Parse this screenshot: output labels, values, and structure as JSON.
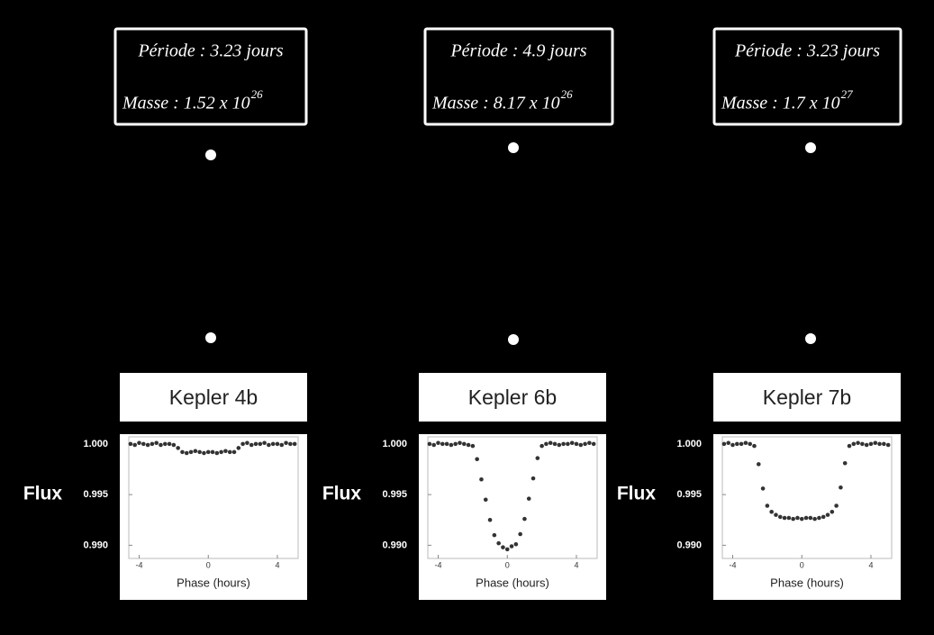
{
  "chart_data": [
    {
      "type": "scatter",
      "title": "Kepler 4b",
      "annotations": {
        "period": "Période : 3.23 jours",
        "mass": "Masse : 1.52 x 10",
        "mass_exponent": "26"
      },
      "x_label": "Phase (hours)",
      "y_label": "Flux",
      "color": "#333333",
      "xlim": [
        -4.6,
        5.2
      ],
      "ylim": [
        0.9887,
        1.0007
      ],
      "xticks": [
        -4,
        0,
        4
      ],
      "yticks": [
        {
          "value": 1,
          "label": "1.000"
        },
        {
          "value": 0.995,
          "label": "0.995"
        },
        {
          "value": 0.99,
          "label": "0.990"
        }
      ],
      "x": [
        -4.5,
        -4.25,
        -4,
        -3.75,
        -3.5,
        -3.25,
        -3,
        -2.75,
        -2.5,
        -2.25,
        -2,
        -1.75,
        -1.5,
        -1.25,
        -1,
        -0.75,
        -0.5,
        -0.25,
        0,
        0.25,
        0.5,
        0.75,
        1,
        1.25,
        1.5,
        1.75,
        2,
        2.25,
        2.5,
        2.75,
        3,
        3.25,
        3.5,
        3.75,
        4,
        4.25,
        4.5,
        4.75,
        5
      ],
      "values": [
        1.0,
        0.9999,
        1.0001,
        1.0,
        0.9999,
        1.0,
        1.0001,
        0.9999,
        1.0,
        1.0,
        0.9999,
        0.9996,
        0.9992,
        0.9991,
        0.9992,
        0.9993,
        0.9992,
        0.9991,
        0.9992,
        0.9992,
        0.9991,
        0.9992,
        0.9993,
        0.9992,
        0.9992,
        0.9996,
        1.0,
        1.0001,
        0.9999,
        1.0,
        1.0,
        1.0001,
        0.9999,
        1.0,
        1.0,
        0.9999,
        1.0001,
        1.0,
        1.0
      ]
    },
    {
      "type": "scatter",
      "title": "Kepler 6b",
      "annotations": {
        "period": "Période : 4.9 jours",
        "mass": "Masse : 8.17 x 10",
        "mass_exponent": "26"
      },
      "x_label": "Phase (hours)",
      "y_label": "Flux",
      "color": "#333333",
      "xlim": [
        -4.6,
        5.2
      ],
      "ylim": [
        0.9887,
        1.0007
      ],
      "xticks": [
        -4,
        0,
        4
      ],
      "yticks": [
        {
          "value": 1,
          "label": "1.000"
        },
        {
          "value": 0.995,
          "label": "0.995"
        },
        {
          "value": 0.99,
          "label": "0.990"
        }
      ],
      "x": [
        -4.5,
        -4.25,
        -4,
        -3.75,
        -3.5,
        -3.25,
        -3,
        -2.75,
        -2.5,
        -2.25,
        -2,
        -1.75,
        -1.5,
        -1.25,
        -1,
        -0.75,
        -0.5,
        -0.25,
        0,
        0.25,
        0.5,
        0.75,
        1,
        1.25,
        1.5,
        1.75,
        2,
        2.25,
        2.5,
        2.75,
        3,
        3.25,
        3.5,
        3.75,
        4,
        4.25,
        4.5,
        4.75,
        5
      ],
      "values": [
        1.0,
        0.9999,
        1.0001,
        1.0,
        1.0,
        0.9999,
        1.0,
        1.0001,
        1.0,
        0.9999,
        0.9998,
        0.9985,
        0.9965,
        0.9945,
        0.9925,
        0.991,
        0.9902,
        0.9898,
        0.9896,
        0.9899,
        0.9901,
        0.9911,
        0.9926,
        0.9946,
        0.9966,
        0.9986,
        0.9998,
        1.0,
        1.0001,
        1.0,
        0.9999,
        1.0,
        1.0,
        1.0001,
        1.0,
        0.9999,
        1.0,
        1.0001,
        1.0
      ]
    },
    {
      "type": "scatter",
      "title": "Kepler 7b",
      "annotations": {
        "period": "Période : 3.23 jours",
        "mass": "Masse : 1.7 x 10",
        "mass_exponent": "27"
      },
      "x_label": "Phase (hours)",
      "y_label": "Flux",
      "color": "#333333",
      "xlim": [
        -4.6,
        5.2
      ],
      "ylim": [
        0.9887,
        1.0007
      ],
      "xticks": [
        -4,
        0,
        4
      ],
      "yticks": [
        {
          "value": 1,
          "label": "1.000"
        },
        {
          "value": 0.995,
          "label": "0.995"
        },
        {
          "value": 0.99,
          "label": "0.990"
        }
      ],
      "x": [
        -4.5,
        -4.25,
        -4,
        -3.75,
        -3.5,
        -3.25,
        -3,
        -2.75,
        -2.5,
        -2.25,
        -2,
        -1.75,
        -1.5,
        -1.25,
        -1,
        -0.75,
        -0.5,
        -0.25,
        0,
        0.25,
        0.5,
        0.75,
        1,
        1.25,
        1.5,
        1.75,
        2,
        2.25,
        2.5,
        2.75,
        3,
        3.25,
        3.5,
        3.75,
        4,
        4.25,
        4.5,
        4.75,
        5
      ],
      "values": [
        1.0,
        1.0001,
        0.9999,
        1.0,
        1.0,
        1.0001,
        1.0,
        0.9998,
        0.998,
        0.9956,
        0.9939,
        0.9933,
        0.993,
        0.9928,
        0.9927,
        0.9927,
        0.9926,
        0.9927,
        0.9926,
        0.9927,
        0.9927,
        0.9926,
        0.9927,
        0.9928,
        0.993,
        0.9933,
        0.9939,
        0.9957,
        0.9981,
        0.9998,
        1.0,
        1.0001,
        1.0,
        0.9999,
        1.0,
        1.0001,
        1.0,
        1.0,
        0.9999
      ]
    }
  ]
}
